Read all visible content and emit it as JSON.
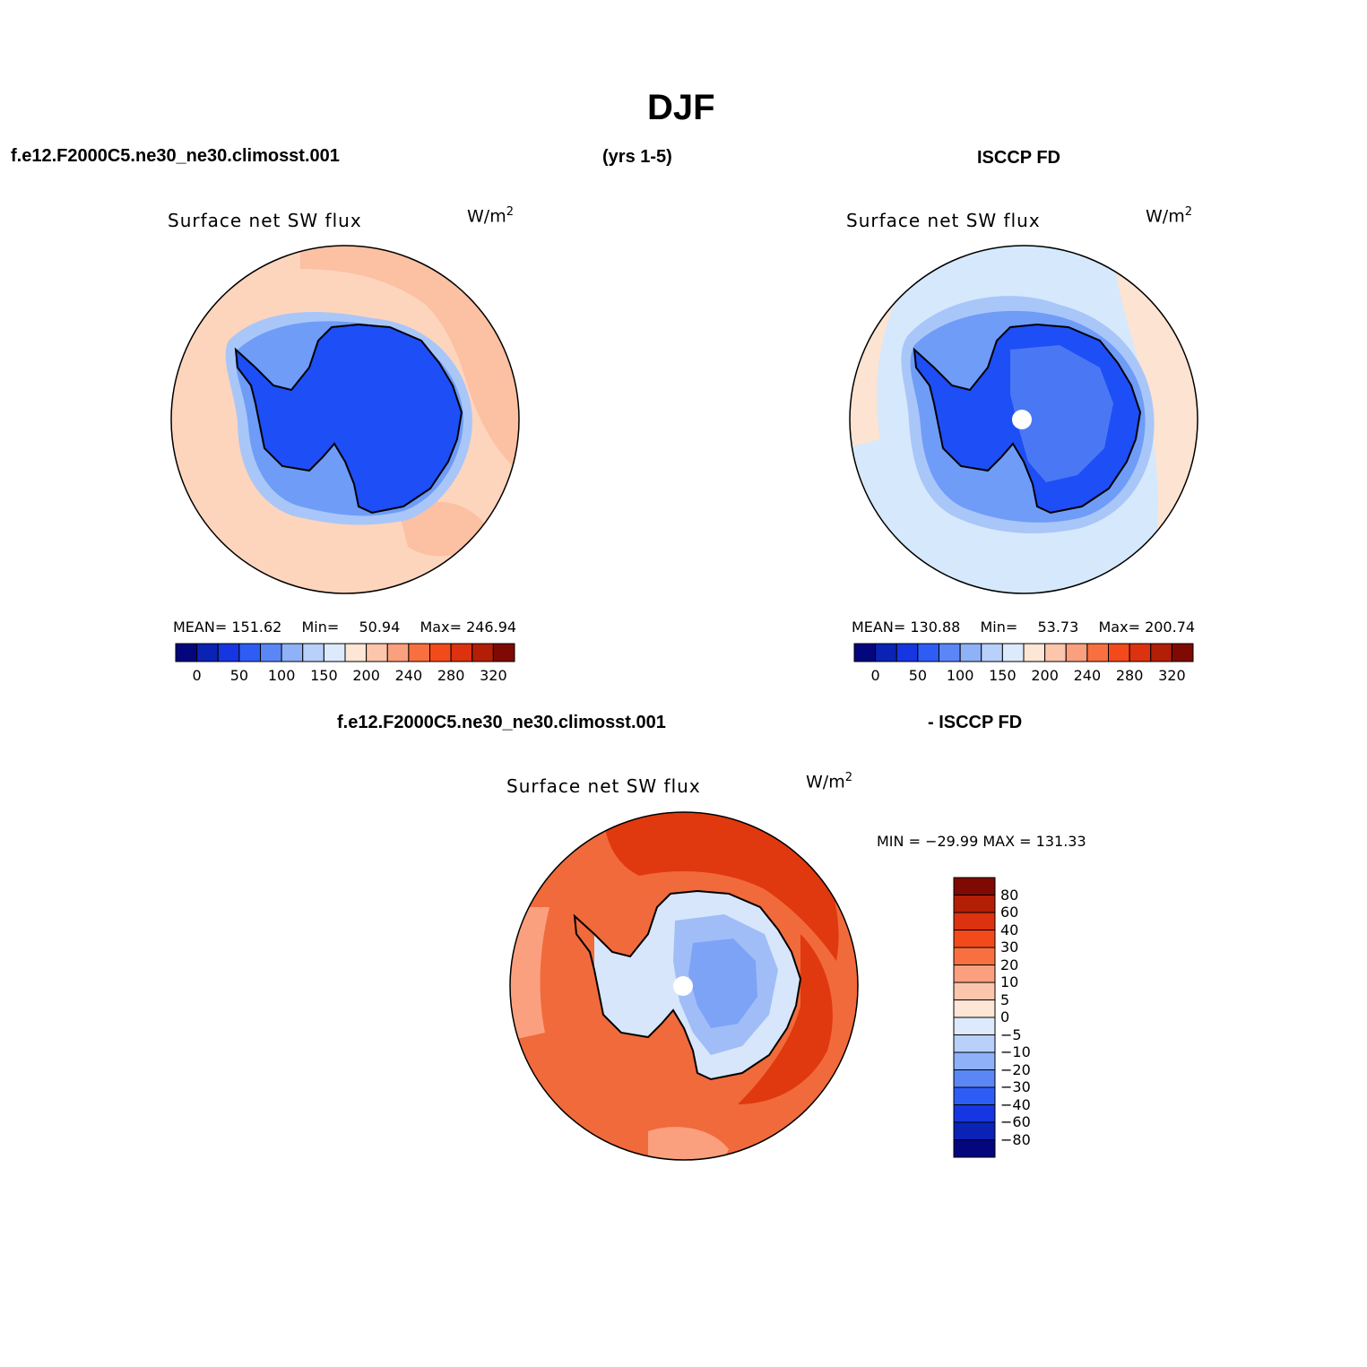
{
  "title": "DJF",
  "case_name": "f.e12.F2000C5.ne30_ne30.climosst.001",
  "years": "(yrs 1-5)",
  "obs_name": "ISCCP FD",
  "diff_case": "f.e12.F2000C5.ne30_ne30.climosst.001",
  "diff_obs": "- ISCCP FD",
  "panels": [
    {
      "variable": "Surface net SW flux",
      "units_base": "W/m",
      "units_exp": "2",
      "mean_label": "MEAN=",
      "mean": "151.62",
      "min_label": "Min=",
      "min": "50.94",
      "max_label": "Max=",
      "max": "246.94",
      "field": {
        "ocean": "#fdd5bd",
        "ocean_warm": "#fcc0a2",
        "ice_ring": "#a9c6f9",
        "ice_inner": "#6e9cf7",
        "land": "#1e4ef5",
        "land_inner": "#2a5ef4"
      }
    },
    {
      "variable": "Surface net SW flux",
      "units_base": "W/m",
      "units_exp": "2",
      "mean_label": "MEAN=",
      "mean": "130.88",
      "min_label": "Min=",
      "min": "53.73",
      "max_label": "Max=",
      "max": "200.74",
      "field": {
        "ocean": "#d6e8fb",
        "ocean_warm": "#fde3d2",
        "ice_ring": "#a9c6f9",
        "ice_inner": "#6e9cf7",
        "land": "#1e4ef5",
        "land_inner": "#4a78f5"
      }
    }
  ],
  "colorbar": {
    "colors": [
      "#04067e",
      "#0a23b5",
      "#1536e0",
      "#2e5df5",
      "#5b86f6",
      "#8fb1f8",
      "#b8d0fa",
      "#dceafb",
      "#fde6d5",
      "#fcc6ad",
      "#fba07e",
      "#f8703f",
      "#f24a1b",
      "#dc3210",
      "#b21f06",
      "#7e0a03"
    ],
    "ticks": [
      "0",
      "50",
      "100",
      "150",
      "200",
      "240",
      "280",
      "320"
    ]
  },
  "diff_panel": {
    "variable": "Surface net SW flux",
    "units_base": "W/m",
    "units_exp": "2",
    "range_text": "MIN = −29.99 MAX = 131.33",
    "field": {
      "ocean": "#f16a3b",
      "ocean_hi": "#e0390f",
      "ocean_lo": "#fba07e",
      "land_edge": "#d7e6fb",
      "land": "#a0bdf8",
      "land_core": "#7da3f6"
    }
  },
  "diff_colorbar": {
    "colors": [
      "#7e0a03",
      "#b21f06",
      "#dc3210",
      "#f24a1b",
      "#f8703f",
      "#fba07e",
      "#fcc6ad",
      "#fde6d5",
      "#dceafb",
      "#b8d0fa",
      "#8fb1f8",
      "#5b86f6",
      "#2e5df5",
      "#1536e0",
      "#0a23b5",
      "#04067e"
    ],
    "ticks": [
      "80",
      "60",
      "40",
      "30",
      "20",
      "10",
      "5",
      "0",
      "−5",
      "−10",
      "−20",
      "−30",
      "−40",
      "−60",
      "−80"
    ]
  }
}
